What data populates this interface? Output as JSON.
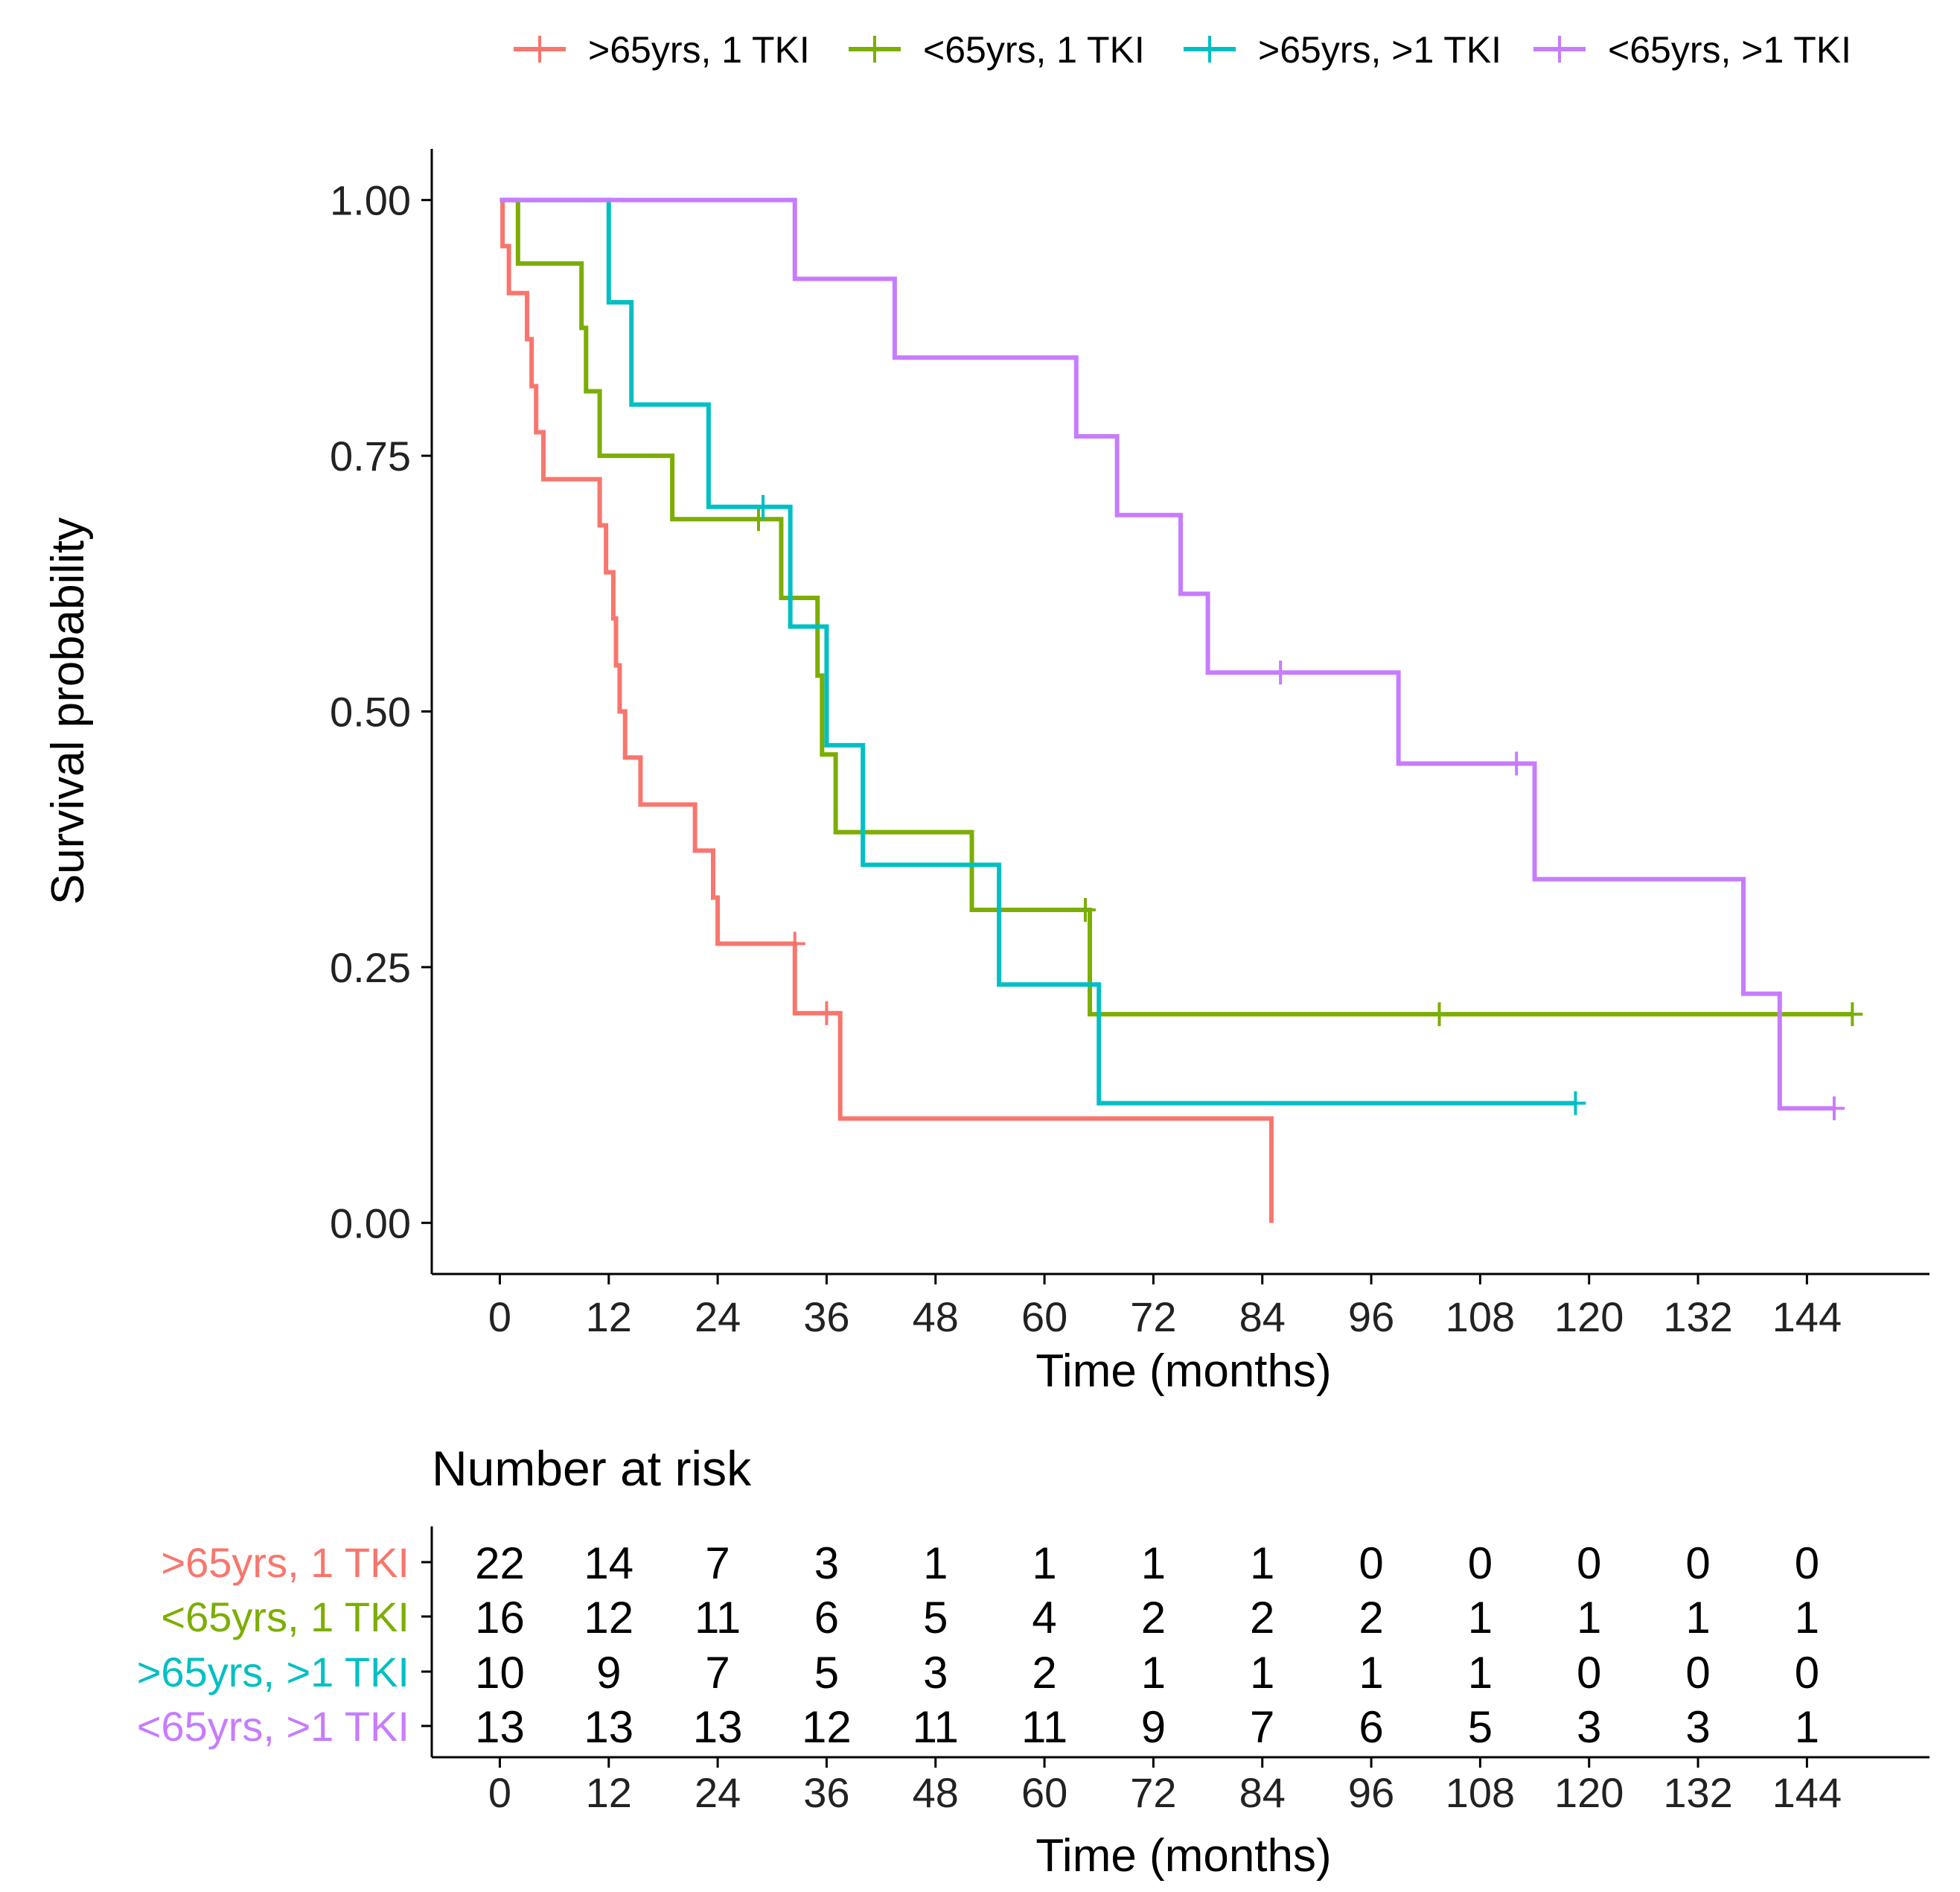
{
  "chart_data": {
    "type": "kaplan-meier",
    "legend": {
      "position": "top",
      "entries": [
        ">65yrs, 1 TKI",
        "<65yrs, 1 TKI",
        ">65yrs, >1 TKI",
        "<65yrs, >1 TKI"
      ]
    },
    "xlabel": "Time (months)",
    "ylabel": "Survival probability",
    "xlim": [
      -7.5,
      157.5
    ],
    "ylim": [
      -0.05,
      1.05
    ],
    "x_ticks": [
      0,
      12,
      24,
      36,
      48,
      60,
      72,
      84,
      96,
      108,
      120,
      132,
      144
    ],
    "y_ticks": [
      0,
      0.25,
      0.5,
      0.75,
      1.0
    ],
    "y_tick_labels": [
      "0.00",
      "0.25",
      "0.50",
      "0.75",
      "1.00"
    ],
    "series": [
      {
        "name": ">65yrs, 1 TKI",
        "color": "#F8766D",
        "steps": [
          [
            0,
            1.0
          ],
          [
            0.3,
            0.955
          ],
          [
            1,
            0.909
          ],
          [
            3,
            0.864
          ],
          [
            3.5,
            0.818
          ],
          [
            4,
            0.773
          ],
          [
            4.8,
            0.727
          ],
          [
            11,
            0.682
          ],
          [
            11.7,
            0.636
          ],
          [
            12.5,
            0.591
          ],
          [
            12.8,
            0.545
          ],
          [
            13.2,
            0.5
          ],
          [
            13.8,
            0.455
          ],
          [
            15.5,
            0.409
          ],
          [
            21.5,
            0.364
          ],
          [
            23.5,
            0.318
          ],
          [
            24,
            0.273
          ],
          [
            32.5,
            0.205
          ],
          [
            37.5,
            0.102
          ],
          [
            85,
            0.102
          ],
          [
            85,
            0.0
          ]
        ],
        "censor": [
          [
            32.5,
            0.273
          ],
          [
            36,
            0.205
          ]
        ]
      },
      {
        "name": "<65yrs, 1 TKI",
        "color": "#7CAE00",
        "steps": [
          [
            0,
            1.0
          ],
          [
            2,
            0.938
          ],
          [
            9,
            0.875
          ],
          [
            9.5,
            0.813
          ],
          [
            11,
            0.75
          ],
          [
            19,
            0.688
          ],
          [
            31,
            0.611
          ],
          [
            35,
            0.535
          ],
          [
            35.5,
            0.458
          ],
          [
            37,
            0.382
          ],
          [
            52,
            0.306
          ],
          [
            65,
            0.204
          ],
          [
            149,
            0.204
          ]
        ],
        "censor": [
          [
            28.5,
            0.688
          ],
          [
            64.5,
            0.306
          ],
          [
            103.5,
            0.204
          ],
          [
            149,
            0.204
          ]
        ]
      },
      {
        "name": ">65yrs, >1 TKI",
        "color": "#00BFC4",
        "steps": [
          [
            0,
            1.0
          ],
          [
            12,
            0.9
          ],
          [
            14.5,
            0.8
          ],
          [
            23,
            0.7
          ],
          [
            32,
            0.583
          ],
          [
            36,
            0.467
          ],
          [
            40,
            0.35
          ],
          [
            55,
            0.233
          ],
          [
            66,
            0.117
          ],
          [
            118.5,
            0.117
          ]
        ],
        "censor": [
          [
            29,
            0.7
          ],
          [
            118.5,
            0.117
          ]
        ]
      },
      {
        "name": "<65yrs, >1 TKI",
        "color": "#C77CFF",
        "steps": [
          [
            0,
            1.0
          ],
          [
            32.5,
            0.923
          ],
          [
            43.5,
            0.846
          ],
          [
            63.5,
            0.769
          ],
          [
            68,
            0.692
          ],
          [
            75,
            0.615
          ],
          [
            78,
            0.538
          ],
          [
            99,
            0.449
          ],
          [
            114,
            0.336
          ],
          [
            137,
            0.224
          ],
          [
            141,
            0.112
          ],
          [
            147,
            0.112
          ]
        ],
        "censor": [
          [
            86,
            0.538
          ],
          [
            112,
            0.449
          ],
          [
            147,
            0.112
          ]
        ]
      }
    ],
    "risk_table": {
      "title": "Number at risk",
      "xlabel": "Time (months)",
      "times": [
        0,
        12,
        24,
        36,
        48,
        60,
        72,
        84,
        96,
        108,
        120,
        132,
        144
      ],
      "rows": [
        {
          "name": ">65yrs, 1 TKI",
          "color": "#F8766D",
          "counts": [
            22,
            14,
            7,
            3,
            1,
            1,
            1,
            1,
            0,
            0,
            0,
            0,
            0
          ]
        },
        {
          "name": "<65yrs, 1 TKI",
          "color": "#7CAE00",
          "counts": [
            16,
            12,
            11,
            6,
            5,
            4,
            2,
            2,
            2,
            1,
            1,
            1,
            1
          ]
        },
        {
          "name": ">65yrs, >1 TKI",
          "color": "#00BFC4",
          "counts": [
            10,
            9,
            7,
            5,
            3,
            2,
            1,
            1,
            1,
            1,
            0,
            0,
            0
          ]
        },
        {
          "name": "<65yrs, >1 TKI",
          "color": "#C77CFF",
          "counts": [
            13,
            13,
            13,
            12,
            11,
            11,
            9,
            7,
            6,
            5,
            3,
            3,
            1
          ]
        }
      ]
    }
  }
}
